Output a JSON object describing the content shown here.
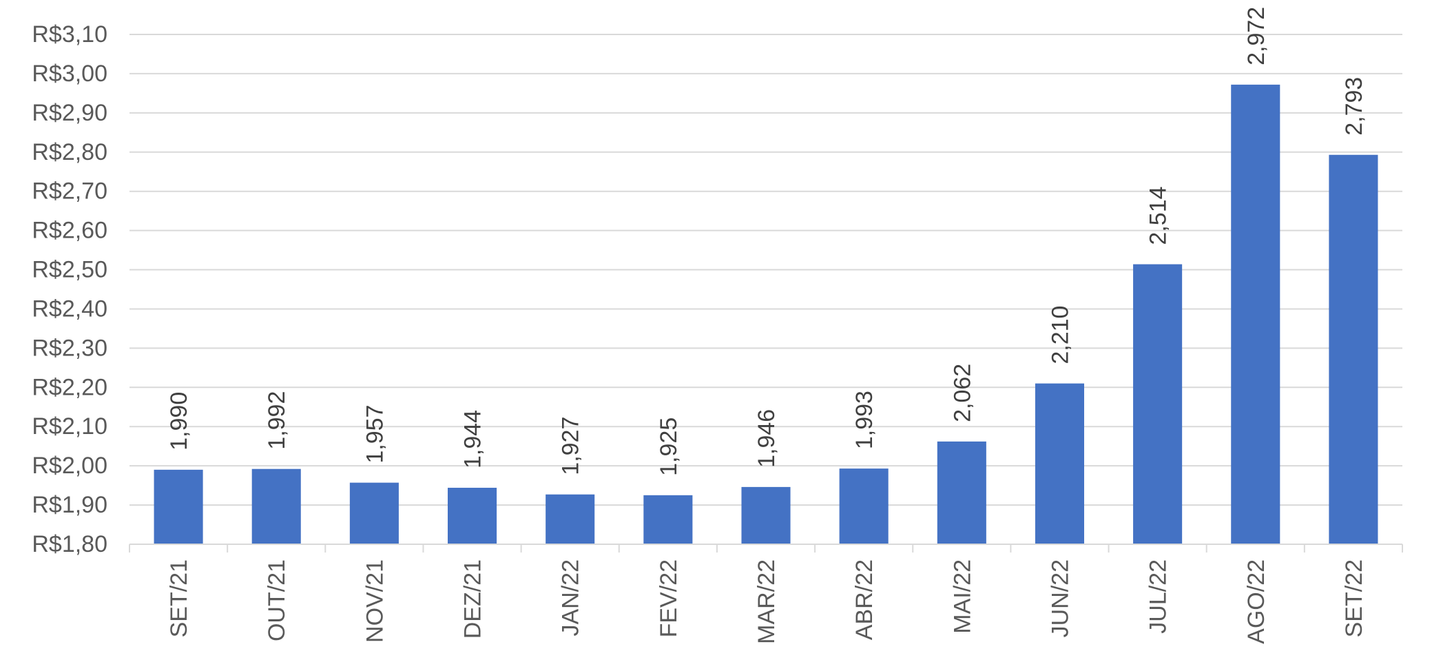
{
  "chart_data": {
    "type": "bar",
    "categories": [
      "SET/21",
      "OUT/21",
      "NOV/21",
      "DEZ/21",
      "JAN/22",
      "FEV/22",
      "MAR/22",
      "ABR/22",
      "MAI/22",
      "JUN/22",
      "JUL/22",
      "AGO/22",
      "SET/22"
    ],
    "values": [
      1.99,
      1.992,
      1.957,
      1.944,
      1.927,
      1.925,
      1.946,
      1.993,
      2.062,
      2.21,
      2.514,
      2.972,
      2.793
    ],
    "data_labels": [
      "1,990",
      "1,992",
      "1,957",
      "1,944",
      "1,927",
      "1,925",
      "1,946",
      "1,993",
      "2,062",
      "2,210",
      "2,514",
      "2,972",
      "2,793"
    ],
    "yticks": [
      1.8,
      1.9,
      2.0,
      2.1,
      2.2,
      2.3,
      2.4,
      2.5,
      2.6,
      2.7,
      2.8,
      2.9,
      3.0,
      3.1
    ],
    "ytick_labels": [
      "R$1,80",
      "R$1,90",
      "R$2,00",
      "R$2,10",
      "R$2,20",
      "R$2,30",
      "R$2,40",
      "R$2,50",
      "R$2,60",
      "R$2,70",
      "R$2,80",
      "R$2,90",
      "R$3,00",
      "R$3,10"
    ],
    "ylim": [
      1.8,
      3.1
    ],
    "title": "",
    "xlabel": "",
    "ylabel": "",
    "bar_color": "#4472c4",
    "grid": true,
    "legend": "none"
  }
}
